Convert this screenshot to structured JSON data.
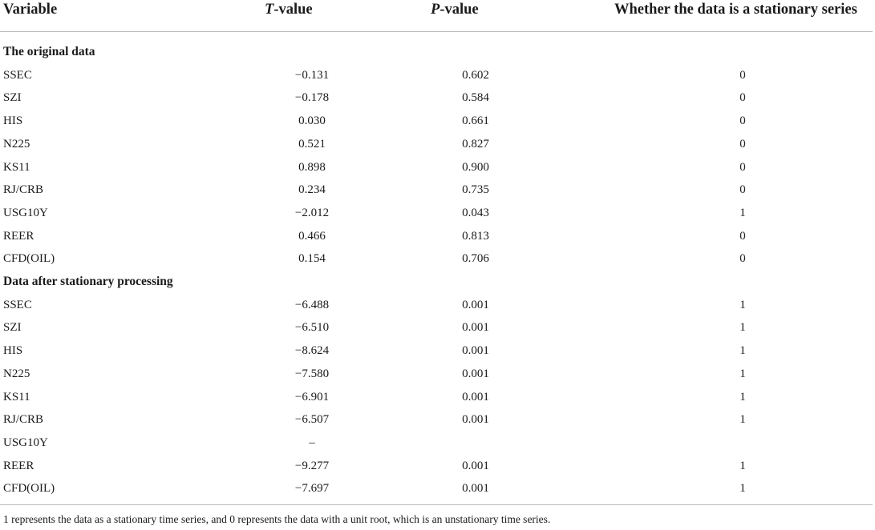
{
  "table": {
    "headers": {
      "variable": "Variable",
      "t_italic": "T",
      "t_rest": "-value",
      "p_italic": "P",
      "p_rest": "-value",
      "stationary": "Whether the data is a stationary series"
    },
    "sections": [
      {
        "title": "The original data",
        "rows": [
          {
            "variable": "SSEC",
            "t": "−0.131",
            "p": "0.602",
            "s": "0"
          },
          {
            "variable": "SZI",
            "t": "−0.178",
            "p": "0.584",
            "s": "0"
          },
          {
            "variable": "HIS",
            "t": "0.030",
            "p": "0.661",
            "s": "0"
          },
          {
            "variable": "N225",
            "t": "0.521",
            "p": "0.827",
            "s": "0"
          },
          {
            "variable": "KS11",
            "t": "0.898",
            "p": "0.900",
            "s": "0"
          },
          {
            "variable": "RJ/CRB",
            "t": "0.234",
            "p": "0.735",
            "s": "0"
          },
          {
            "variable": "USG10Y",
            "t": "−2.012",
            "p": "0.043",
            "s": "1"
          },
          {
            "variable": "REER",
            "t": "0.466",
            "p": "0.813",
            "s": "0"
          },
          {
            "variable": "CFD(OIL)",
            "t": "0.154",
            "p": "0.706",
            "s": "0"
          }
        ]
      },
      {
        "title": "Data after stationary processing",
        "rows": [
          {
            "variable": "SSEC",
            "t": "−6.488",
            "p": "0.001",
            "s": "1"
          },
          {
            "variable": "SZI",
            "t": "−6.510",
            "p": "0.001",
            "s": "1"
          },
          {
            "variable": "HIS",
            "t": "−8.624",
            "p": "0.001",
            "s": "1"
          },
          {
            "variable": "N225",
            "t": "−7.580",
            "p": "0.001",
            "s": "1"
          },
          {
            "variable": "KS11",
            "t": "−6.901",
            "p": "0.001",
            "s": "1"
          },
          {
            "variable": "RJ/CRB",
            "t": "−6.507",
            "p": "0.001",
            "s": "1"
          },
          {
            "variable": "USG10Y",
            "t": "–",
            "p": "",
            "s": ""
          },
          {
            "variable": "REER",
            "t": "−9.277",
            "p": "0.001",
            "s": "1"
          },
          {
            "variable": "CFD(OIL)",
            "t": "−7.697",
            "p": "0.001",
            "s": "1"
          }
        ]
      }
    ],
    "footnote": "1 represents the data as a stationary time series, and 0 represents the data with a unit root, which is an unstationary time series."
  }
}
